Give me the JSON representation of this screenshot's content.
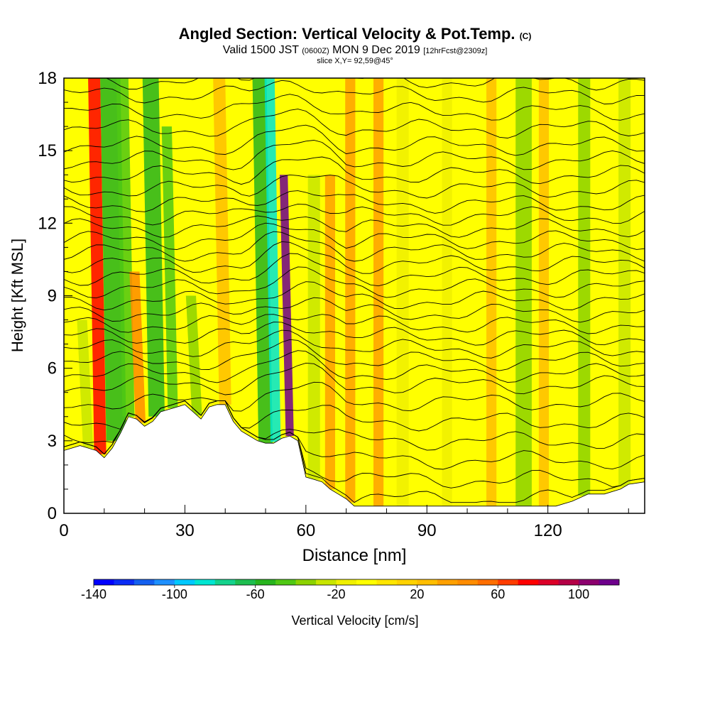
{
  "header": {
    "title": "Angled Section: Vertical Velocity & Pot.Temp.",
    "title_mark": "(C)",
    "valid_prefix": "Valid 1500 JST",
    "valid_utc": "(0600Z)",
    "valid_date": "MON 9 Dec 2019",
    "forecast": "[12hrFcst@2309z]",
    "slice": "slice X,Y= 92,59@45°"
  },
  "chart_data": {
    "type": "heatmap",
    "xlabel": "Distance [nm]",
    "ylabel": "Height [Kft MSL]",
    "xlim": [
      0,
      144
    ],
    "ylim": [
      0,
      18
    ],
    "x_ticks": [
      0,
      30,
      60,
      90,
      120
    ],
    "y_ticks": [
      0,
      3,
      6,
      9,
      12,
      15,
      18
    ],
    "colorbar": {
      "label": "Vertical Velocity [cm/s]",
      "tick_labels": [
        "-140",
        "-100",
        "-60",
        "-20",
        "20",
        "60",
        "100"
      ],
      "tick_values": [
        -140,
        -100,
        -60,
        -20,
        20,
        60,
        100
      ],
      "range": [
        -140,
        120
      ],
      "colors": [
        "#0000ff",
        "#0a2cf5",
        "#1460ef",
        "#1e90ff",
        "#00c8ff",
        "#00e6d2",
        "#14d28c",
        "#1ebe50",
        "#28b41e",
        "#50c814",
        "#8cd200",
        "#c8e600",
        "#f0f000",
        "#ffff00",
        "#ffe600",
        "#ffd200",
        "#ffbe00",
        "#ffa000",
        "#ff8c00",
        "#ff6e00",
        "#ff3c00",
        "#ff0000",
        "#dc0028",
        "#b40046",
        "#8c006e",
        "#6e008c"
      ]
    },
    "terrain_kft": {
      "x": [
        0,
        4,
        8,
        10,
        12,
        14,
        16,
        18,
        20,
        22,
        24,
        26,
        28,
        30,
        32,
        34,
        36,
        38,
        40,
        42,
        44,
        46,
        48,
        50,
        52,
        54,
        56,
        58,
        60,
        62,
        64,
        66,
        68,
        70,
        72,
        74,
        78,
        90,
        100,
        110,
        118,
        122,
        126,
        130,
        134,
        138,
        140,
        144
      ],
      "y": [
        2.6,
        2.8,
        2.6,
        2.3,
        2.7,
        3.3,
        4.0,
        3.9,
        3.6,
        3.8,
        4.2,
        4.3,
        4.4,
        4.5,
        4.2,
        3.9,
        4.4,
        4.5,
        4.5,
        3.8,
        3.4,
        3.2,
        3.0,
        2.9,
        2.9,
        3.1,
        3.2,
        3.0,
        1.5,
        1.4,
        1.3,
        1.0,
        0.8,
        0.6,
        0.3,
        0.3,
        0.3,
        0.3,
        0.3,
        0.3,
        0.3,
        0.3,
        0.5,
        0.8,
        0.8,
        1.0,
        1.2,
        1.3
      ]
    },
    "velocity_bands": [
      {
        "x": 9,
        "w": 3,
        "v": 70,
        "top": 18
      },
      {
        "x": 13,
        "w": 5,
        "v": -60,
        "top": 18
      },
      {
        "x": 16,
        "w": 3,
        "v": -50,
        "top": 18
      },
      {
        "x": 23,
        "w": 4,
        "v": -55,
        "top": 18
      },
      {
        "x": 27,
        "w": 2.5,
        "v": -45,
        "top": 16
      },
      {
        "x": 19,
        "w": 2.5,
        "v": 40,
        "top": 10
      },
      {
        "x": 6,
        "w": 2.5,
        "v": -30,
        "top": 8
      },
      {
        "x": 33,
        "w": 2.5,
        "v": -35,
        "top": 9
      },
      {
        "x": 40,
        "w": 3,
        "v": 25,
        "top": 18
      },
      {
        "x": 50,
        "w": 3.5,
        "v": -60,
        "top": 18
      },
      {
        "x": 52.5,
        "w": 2.5,
        "v": -90,
        "top": 18
      },
      {
        "x": 56,
        "w": 2,
        "v": 110,
        "top": 14
      },
      {
        "x": 62,
        "w": 3,
        "v": -30,
        "top": 14
      },
      {
        "x": 66,
        "w": 2.5,
        "v": 30,
        "top": 14
      },
      {
        "x": 71,
        "w": 2.5,
        "v": 35,
        "top": 18
      },
      {
        "x": 78,
        "w": 2.5,
        "v": 30,
        "top": 18
      },
      {
        "x": 84,
        "w": 3,
        "v": -20,
        "top": 18
      },
      {
        "x": 95,
        "w": 2.5,
        "v": -20,
        "top": 18
      },
      {
        "x": 106,
        "w": 2.5,
        "v": 20,
        "top": 18
      },
      {
        "x": 114,
        "w": 4,
        "v": -40,
        "top": 18
      },
      {
        "x": 119,
        "w": 2.5,
        "v": 25,
        "top": 18
      },
      {
        "x": 129,
        "w": 3,
        "v": -40,
        "top": 18
      },
      {
        "x": 139,
        "w": 3,
        "v": -30,
        "top": 18
      }
    ],
    "theta_contour_heights_kft": [
      0.6,
      1.4,
      2.2,
      3.0,
      3.8,
      4.6,
      5.3,
      5.8,
      6.3,
      6.8,
      7.3,
      7.8,
      8.3,
      8.8,
      9.3,
      9.8,
      10.3,
      10.8,
      11.3,
      11.8,
      12.3,
      12.8,
      13.4,
      14.0,
      14.6,
      15.2,
      15.9,
      16.6,
      17.3,
      17.9
    ]
  }
}
